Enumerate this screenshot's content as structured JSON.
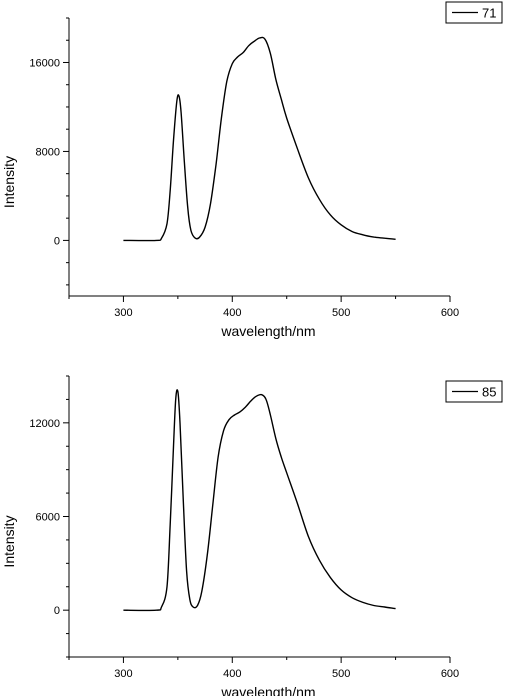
{
  "chart_data": [
    {
      "type": "line",
      "xlabel": "wavelength/nm",
      "ylabel": "Intensity",
      "xlim": [
        250,
        600
      ],
      "ylim": [
        -5000,
        20000
      ],
      "x_ticks": [
        300,
        400,
        500,
        600
      ],
      "x_tick_labels": [
        "300",
        "400",
        "500",
        "600"
      ],
      "y_ticks": [
        0,
        8000,
        16000
      ],
      "y_tick_labels": [
        "0",
        "8000",
        "16000"
      ],
      "legend_position": "top-right",
      "grid": false,
      "series": [
        {
          "name": "71",
          "color": "#000000",
          "x": [
            300,
            330,
            335,
            340,
            343,
            346,
            349,
            351,
            353,
            356,
            359,
            362,
            366,
            370,
            375,
            380,
            385,
            390,
            395,
            400,
            405,
            410,
            415,
            420,
            425,
            430,
            435,
            440,
            445,
            450,
            460,
            470,
            480,
            490,
            500,
            510,
            520,
            530,
            540,
            550
          ],
          "y": [
            0,
            0,
            200,
            1500,
            4500,
            9000,
            12500,
            13000,
            11500,
            7000,
            3000,
            900,
            200,
            300,
            1200,
            3300,
            6800,
            11000,
            14300,
            15900,
            16500,
            16900,
            17500,
            17900,
            18200,
            18100,
            16800,
            14500,
            12700,
            11000,
            8200,
            5600,
            3700,
            2300,
            1400,
            800,
            500,
            300,
            200,
            100
          ]
        }
      ]
    },
    {
      "type": "line",
      "xlabel": "wavelength/nm",
      "ylabel": "Intensity",
      "xlim": [
        250,
        600
      ],
      "ylim": [
        -3000,
        15000
      ],
      "x_ticks": [
        300,
        400,
        500,
        600
      ],
      "x_tick_labels": [
        "300",
        "400",
        "500",
        "600"
      ],
      "y_ticks": [
        0,
        6000,
        12000
      ],
      "y_tick_labels": [
        "0",
        "6000",
        "12000"
      ],
      "legend_position": "top-right",
      "grid": false,
      "series": [
        {
          "name": "85",
          "color": "#000000",
          "x": [
            300,
            330,
            335,
            340,
            343,
            346,
            348,
            350,
            352,
            355,
            358,
            361,
            364,
            368,
            372,
            377,
            382,
            387,
            392,
            397,
            402,
            407,
            412,
            417,
            422,
            427,
            431,
            435,
            440,
            445,
            450,
            460,
            470,
            480,
            490,
            500,
            510,
            520,
            530,
            540,
            550
          ],
          "y": [
            0,
            0,
            200,
            1500,
            5500,
            10500,
            13500,
            14000,
            12000,
            7000,
            2500,
            700,
            200,
            300,
            1200,
            3500,
            6700,
            9800,
            11500,
            12200,
            12500,
            12700,
            13000,
            13400,
            13700,
            13800,
            13500,
            12500,
            11000,
            9800,
            8800,
            6800,
            4700,
            3200,
            2100,
            1300,
            800,
            500,
            300,
            200,
            100
          ]
        }
      ]
    }
  ]
}
